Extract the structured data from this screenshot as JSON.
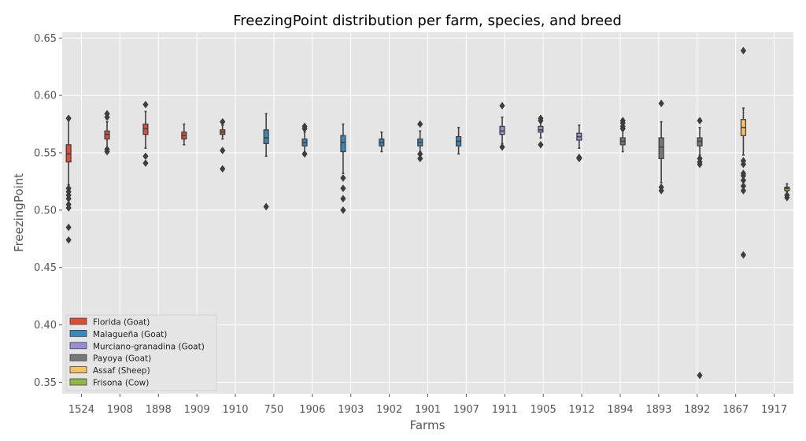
{
  "chart_data": {
    "type": "box",
    "title": "FreezingPoint distribution per farm, species, and breed",
    "xlabel": "Farms",
    "ylabel": "FreezingPoint",
    "ylim": [
      0.34,
      0.655
    ],
    "yticks": [
      "0.35",
      "0.40",
      "0.45",
      "0.50",
      "0.55",
      "0.60",
      "0.65"
    ],
    "grid": true,
    "legend_position": "bottom-left",
    "categories": [
      "1524",
      "1908",
      "1898",
      "1909",
      "1910",
      "750",
      "1906",
      "1903",
      "1902",
      "1901",
      "1907",
      "1911",
      "1905",
      "1912",
      "1894",
      "1893",
      "1892",
      "1867",
      "1917"
    ],
    "series": [
      {
        "name": "Florida (Goat)",
        "color": "#E24A33"
      },
      {
        "name": "Malagueña (Goat)",
        "color": "#348ABD"
      },
      {
        "name": "Murciano-granadina (Goat)",
        "color": "#988ED5"
      },
      {
        "name": "Payoya (Goat)",
        "color": "#777777"
      },
      {
        "name": "Assaf (Sheep)",
        "color": "#FBC15E"
      },
      {
        "name": "Frisona (Cow)",
        "color": "#8EBA42"
      }
    ],
    "boxes": [
      {
        "category": "1524",
        "series": 0,
        "whisker_low": 0.522,
        "q1": 0.542,
        "median": 0.549,
        "q3": 0.557,
        "whisker_high": 0.578,
        "outliers": [
          0.58,
          0.519,
          0.516,
          0.513,
          0.51,
          0.505,
          0.502,
          0.485,
          0.474
        ]
      },
      {
        "category": "1908",
        "series": 0,
        "whisker_low": 0.554,
        "q1": 0.562,
        "median": 0.566,
        "q3": 0.569,
        "whisker_high": 0.577,
        "outliers": [
          0.584,
          0.581,
          0.553,
          0.551
        ]
      },
      {
        "category": "1898",
        "series": 0,
        "whisker_low": 0.554,
        "q1": 0.566,
        "median": 0.571,
        "q3": 0.575,
        "whisker_high": 0.586,
        "outliers": [
          0.592,
          0.547,
          0.541
        ]
      },
      {
        "category": "1909",
        "series": 0,
        "whisker_low": 0.557,
        "q1": 0.562,
        "median": 0.565,
        "q3": 0.568,
        "whisker_high": 0.575,
        "outliers": []
      },
      {
        "category": "1910",
        "series": 0,
        "whisker_low": 0.562,
        "q1": 0.566,
        "median": 0.568,
        "q3": 0.57,
        "whisker_high": 0.574,
        "outliers": [
          0.577,
          0.552,
          0.536
        ]
      },
      {
        "category": "750",
        "series": 1,
        "whisker_low": 0.547,
        "q1": 0.558,
        "median": 0.563,
        "q3": 0.57,
        "whisker_high": 0.584,
        "outliers": [
          0.503
        ]
      },
      {
        "category": "1906",
        "series": 1,
        "whisker_low": 0.55,
        "q1": 0.556,
        "median": 0.559,
        "q3": 0.562,
        "whisker_high": 0.568,
        "outliers": [
          0.573,
          0.571,
          0.549
        ]
      },
      {
        "category": "1903",
        "series": 1,
        "whisker_low": 0.532,
        "q1": 0.551,
        "median": 0.559,
        "q3": 0.565,
        "whisker_high": 0.575,
        "outliers": [
          0.528,
          0.519,
          0.51,
          0.5
        ]
      },
      {
        "category": "1902",
        "series": 1,
        "whisker_low": 0.551,
        "q1": 0.556,
        "median": 0.559,
        "q3": 0.562,
        "whisker_high": 0.568,
        "outliers": []
      },
      {
        "category": "1901",
        "series": 1,
        "whisker_low": 0.551,
        "q1": 0.556,
        "median": 0.559,
        "q3": 0.562,
        "whisker_high": 0.569,
        "outliers": [
          0.575,
          0.549,
          0.545
        ]
      },
      {
        "category": "1907",
        "series": 1,
        "whisker_low": 0.549,
        "q1": 0.556,
        "median": 0.56,
        "q3": 0.564,
        "whisker_high": 0.572,
        "outliers": []
      },
      {
        "category": "1911",
        "series": 2,
        "whisker_low": 0.558,
        "q1": 0.566,
        "median": 0.569,
        "q3": 0.573,
        "whisker_high": 0.581,
        "outliers": [
          0.591,
          0.555
        ]
      },
      {
        "category": "1905",
        "series": 2,
        "whisker_low": 0.563,
        "q1": 0.568,
        "median": 0.57,
        "q3": 0.573,
        "whisker_high": 0.576,
        "outliers": [
          0.58,
          0.578,
          0.557
        ]
      },
      {
        "category": "1912",
        "series": 2,
        "whisker_low": 0.554,
        "q1": 0.561,
        "median": 0.564,
        "q3": 0.567,
        "whisker_high": 0.574,
        "outliers": [
          0.546,
          0.545
        ]
      },
      {
        "category": "1894",
        "series": 3,
        "whisker_low": 0.551,
        "q1": 0.557,
        "median": 0.56,
        "q3": 0.563,
        "whisker_high": 0.569,
        "outliers": [
          0.578,
          0.576,
          0.573,
          0.571
        ]
      },
      {
        "category": "1893",
        "series": 3,
        "whisker_low": 0.524,
        "q1": 0.545,
        "median": 0.555,
        "q3": 0.563,
        "whisker_high": 0.577,
        "outliers": [
          0.593,
          0.52,
          0.517
        ]
      },
      {
        "category": "1892",
        "series": 3,
        "whisker_low": 0.548,
        "q1": 0.556,
        "median": 0.56,
        "q3": 0.563,
        "whisker_high": 0.572,
        "outliers": [
          0.578,
          0.545,
          0.542,
          0.54,
          0.356
        ]
      },
      {
        "category": "1867",
        "series": 4,
        "whisker_low": 0.548,
        "q1": 0.565,
        "median": 0.572,
        "q3": 0.579,
        "whisker_high": 0.589,
        "outliers": [
          0.639,
          0.543,
          0.54,
          0.532,
          0.53,
          0.526,
          0.521,
          0.517,
          0.461
        ]
      },
      {
        "category": "1917",
        "series": 5,
        "whisker_low": 0.516,
        "q1": 0.517,
        "median": 0.519,
        "q3": 0.52,
        "whisker_high": 0.523,
        "outliers": [
          0.513,
          0.511
        ]
      }
    ]
  }
}
